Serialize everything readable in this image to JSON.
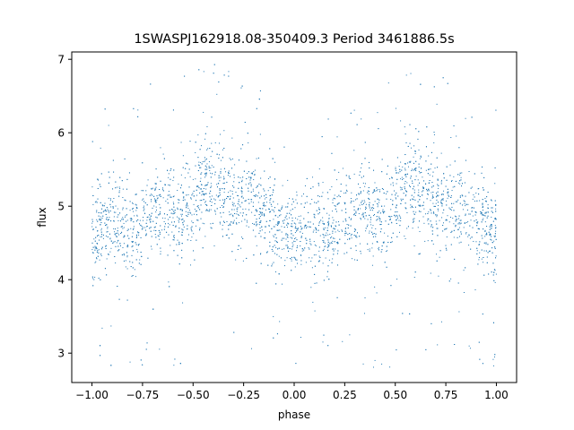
{
  "chart_data": {
    "type": "scatter",
    "title": "1SWASPJ162918.08-350409.3 Period 3461886.5s",
    "xlabel": "phase",
    "ylabel": "flux",
    "xlim": [
      -1.1,
      1.1
    ],
    "ylim": [
      2.6,
      7.1
    ],
    "xticks": [
      {
        "value": -1.0,
        "label": "−1.00"
      },
      {
        "value": -0.75,
        "label": "−0.75"
      },
      {
        "value": -0.5,
        "label": "−0.50"
      },
      {
        "value": -0.25,
        "label": "−0.25"
      },
      {
        "value": 0.0,
        "label": "0.00"
      },
      {
        "value": 0.25,
        "label": "0.25"
      },
      {
        "value": 0.5,
        "label": "0.50"
      },
      {
        "value": 0.75,
        "label": "0.75"
      },
      {
        "value": 1.0,
        "label": "1.00"
      }
    ],
    "yticks": [
      {
        "value": 3,
        "label": "3"
      },
      {
        "value": 4,
        "label": "4"
      },
      {
        "value": 5,
        "label": "5"
      },
      {
        "value": 6,
        "label": "6"
      },
      {
        "value": 7,
        "label": "7"
      }
    ],
    "grid": false,
    "marker_color": "#1f77b4",
    "series": [
      {
        "phase": [
          -1.0,
          -0.95,
          -0.9,
          -0.85,
          -0.8,
          -0.75,
          -0.7,
          -0.65,
          -0.6,
          -0.55,
          -0.5,
          -0.45,
          -0.4,
          -0.35,
          -0.3,
          -0.25,
          -0.2,
          -0.15,
          -0.1,
          -0.05,
          0.0,
          0.05,
          0.1,
          0.15,
          0.2,
          0.25,
          0.3,
          0.35,
          0.4,
          0.45,
          0.5,
          0.55,
          0.6,
          0.65,
          0.7,
          0.75,
          0.8,
          0.85,
          0.9,
          0.95,
          1.0
        ],
        "flux": [
          4.6,
          4.7,
          4.75,
          4.7,
          4.65,
          4.8,
          4.9,
          5.0,
          4.85,
          4.9,
          5.0,
          5.3,
          5.35,
          5.2,
          5.1,
          5.05,
          5.1,
          4.9,
          4.8,
          4.75,
          4.65,
          4.7,
          4.75,
          4.7,
          4.65,
          4.8,
          4.9,
          5.0,
          4.85,
          4.9,
          5.0,
          5.3,
          5.35,
          5.2,
          5.1,
          5.05,
          5.1,
          4.9,
          4.8,
          4.75,
          4.6
        ]
      }
    ]
  }
}
